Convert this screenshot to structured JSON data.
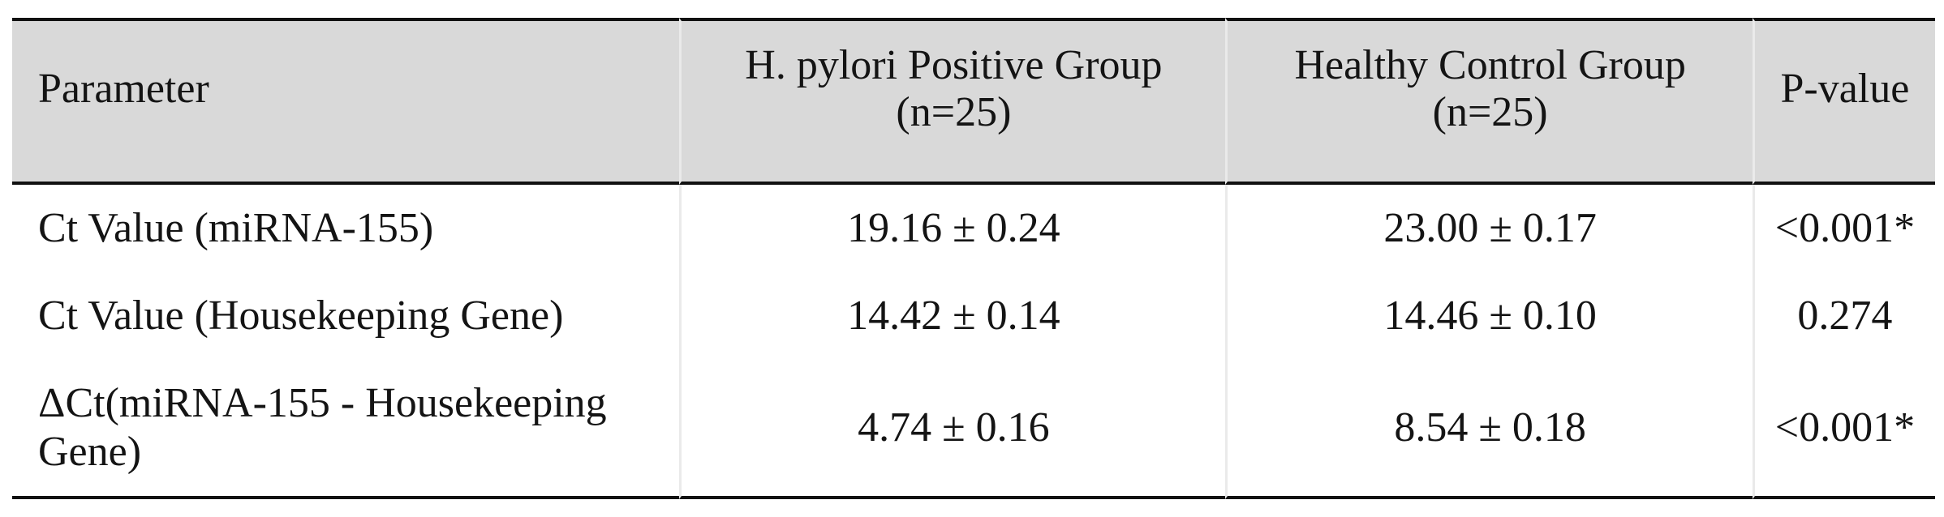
{
  "table": {
    "style": {
      "header_bg": "#d9d9d9",
      "rule_color": "#111111",
      "column_separator_color": "#eaeaea",
      "text_color": "#141414"
    },
    "header": [
      {
        "label": "Parameter"
      },
      {
        "label": "H. pylori Positive Group",
        "sub": "(n=25)"
      },
      {
        "label": "Healthy Control Group",
        "sub": "(n=25)"
      },
      {
        "label": "P-value"
      }
    ],
    "rows": [
      {
        "parameter": "Ct Value (miRNA-155)",
        "hpylori_positive": "19.16 ± 0.24",
        "healthy_control": "23.00 ± 0.17",
        "p_value": "<0.001*"
      },
      {
        "parameter": "Ct Value (Housekeeping Gene)",
        "hpylori_positive": "14.42 ± 0.14",
        "healthy_control": "14.46 ± 0.10",
        "p_value": "0.274"
      },
      {
        "parameter": "ΔCt(miRNA-155 - Housekeeping Gene)",
        "hpylori_positive": "4.74 ± 0.16",
        "healthy_control": "8.54 ± 0.18",
        "p_value": "<0.001*"
      }
    ]
  }
}
